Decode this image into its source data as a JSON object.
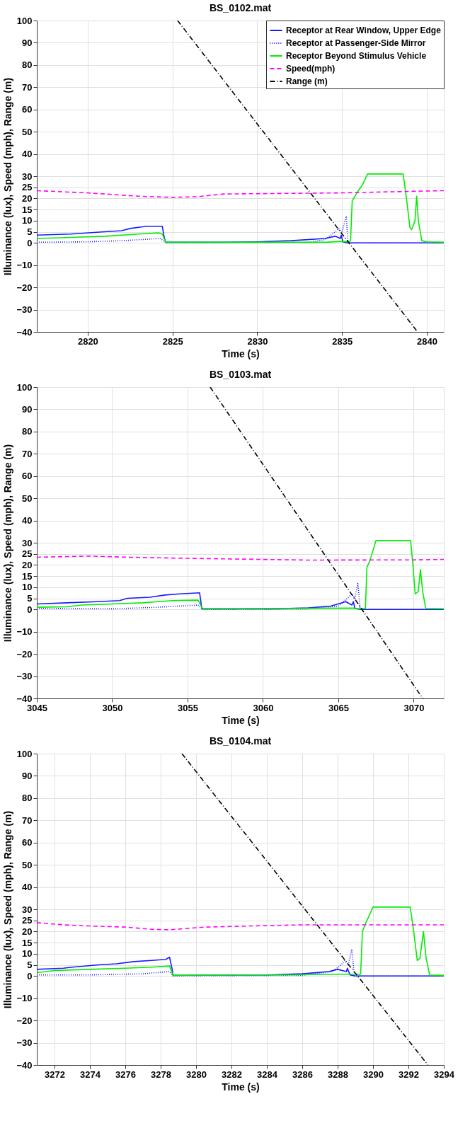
{
  "chart_data": [
    {
      "type": "line",
      "title": "BS_0102.mat",
      "xlabel": "Time (s)",
      "ylabel": "Illuminance (lux),  Speed (mph),  Range (m)",
      "xlim": [
        2817,
        2841
      ],
      "xticks": [
        2820,
        2825,
        2830,
        2835,
        2840
      ],
      "ylim": [
        -40,
        100
      ],
      "yticks": [
        -40,
        -30,
        -20,
        -10,
        0,
        5,
        10,
        15,
        20,
        25,
        30,
        40,
        50,
        60,
        70,
        80,
        90,
        100
      ],
      "grid": true,
      "legend": "top right",
      "series": [
        {
          "name": "Receptor at Rear Window, Upper Edge",
          "color": "#1a1aff",
          "line_style": "solid",
          "x": [
            2817,
            2819,
            2821,
            2822,
            2822.5,
            2823,
            2823.5,
            2824.4,
            2824.5,
            2824.6,
            2828,
            2830,
            2832,
            2834,
            2834.6,
            2834.9,
            2834.95,
            2835.05,
            2835.3,
            2841
          ],
          "values": [
            3.5,
            4,
            5,
            5.5,
            6.5,
            7,
            7.5,
            7.5,
            3,
            0.3,
            0.3,
            0.5,
            1,
            2,
            3,
            2,
            3.5,
            0.5,
            0,
            0
          ]
        },
        {
          "name": "Receptor at Passenger-Side Mirror",
          "color": "#1a1aff",
          "line_style": "dotted",
          "x": [
            2817,
            2820,
            2822,
            2824.3,
            2824.6,
            2833,
            2834,
            2834.6,
            2834.8,
            2835,
            2835.25,
            2835.35,
            2841
          ],
          "values": [
            0.3,
            0.5,
            1,
            2,
            0,
            0.2,
            1.5,
            5,
            6.5,
            5,
            12,
            0,
            0
          ]
        },
        {
          "name": "Receptor Beyond Stimulus Vehicle",
          "color": "#00ee00",
          "line_style": "solid",
          "x": [
            2817,
            2819,
            2821,
            2823,
            2824.2,
            2824.4,
            2824.6,
            2834,
            2835,
            2835.4,
            2835.5,
            2835.6,
            2836,
            2836.2,
            2836.5,
            2838.6,
            2838.8,
            2839,
            2839.1,
            2839.3,
            2839.4,
            2839.5,
            2839.7,
            2840,
            2841
          ],
          "values": [
            2,
            2.5,
            3,
            4,
            4.5,
            4,
            0.3,
            0.3,
            0.7,
            0.5,
            1,
            19,
            24,
            26,
            31,
            31,
            20,
            7,
            6,
            10,
            21,
            10,
            1,
            0.5,
            0.3
          ]
        },
        {
          "name": "Speed(mph)",
          "color": "#ff00ff",
          "line_style": "dashed",
          "x": [
            2817,
            2820,
            2823,
            2825,
            2826.5,
            2828,
            2832,
            2835,
            2838,
            2841
          ],
          "values": [
            23.5,
            22.5,
            21,
            20.5,
            20.8,
            22,
            22.3,
            22.5,
            23,
            23.5
          ]
        },
        {
          "name": "Range (m)",
          "color": "#000000",
          "line_style": "dashdot",
          "x": [
            2825.3,
            2839.45
          ],
          "values": [
            100,
            -40
          ]
        }
      ]
    },
    {
      "type": "line",
      "title": "BS_0103.mat",
      "xlabel": "Time (s)",
      "ylabel": "Illuminance (lux),  Speed (mph),  Range (m)",
      "xlim": [
        3045,
        3072
      ],
      "xticks": [
        3045,
        3050,
        3055,
        3060,
        3065,
        3070
      ],
      "ylim": [
        -40,
        100
      ],
      "yticks": [
        -40,
        -30,
        -20,
        -10,
        0,
        5,
        10,
        15,
        20,
        25,
        30,
        40,
        50,
        60,
        70,
        80,
        90,
        100
      ],
      "grid": true,
      "legend": "top right",
      "series": [
        {
          "name": "Receptor at Rear Window, Upper Edge",
          "color": "#1a1aff",
          "line_style": "solid",
          "x": [
            3045,
            3047,
            3049,
            3050.5,
            3051,
            3052.5,
            3053.5,
            3054.5,
            3055.8,
            3055.95,
            3061,
            3063,
            3064.5,
            3065.5,
            3065.9,
            3066.0,
            3066.1,
            3066.5,
            3072
          ],
          "values": [
            2.5,
            3,
            3.5,
            4,
            5,
            5.5,
            6.5,
            7,
            7.5,
            0.3,
            0.3,
            0.7,
            1.5,
            3.5,
            2,
            3.5,
            0.5,
            0,
            0
          ]
        },
        {
          "name": "Receptor at Passenger-Side Mirror",
          "color": "#1a1aff",
          "line_style": "dotted",
          "x": [
            3045,
            3050,
            3053,
            3055.7,
            3056,
            3063,
            3065,
            3065.6,
            3065.9,
            3066.1,
            3066.3,
            3066.45,
            3072
          ],
          "values": [
            0.5,
            0.3,
            1,
            2,
            0,
            0.2,
            1.5,
            5,
            7,
            5,
            12,
            0,
            0
          ]
        },
        {
          "name": "Receptor Beyond Stimulus Vehicle",
          "color": "#00ee00",
          "line_style": "solid",
          "x": [
            3045,
            3047,
            3048,
            3050,
            3052,
            3053,
            3054,
            3055.7,
            3056,
            3066,
            3066.5,
            3066.8,
            3066.9,
            3067.1,
            3067.5,
            3069.8,
            3069.95,
            3070.1,
            3070.3,
            3070.45,
            3070.6,
            3070.8,
            3072
          ],
          "values": [
            1,
            1.2,
            2,
            2.5,
            3,
            3.5,
            4,
            4.2,
            0.3,
            0.6,
            0.3,
            0.5,
            19,
            22,
            31,
            31,
            20,
            7,
            8,
            18,
            8,
            0.5,
            0.3
          ]
        },
        {
          "name": "Speed(mph)",
          "color": "#ff00ff",
          "line_style": "dashed",
          "x": [
            3045,
            3048.5,
            3051,
            3055,
            3060,
            3063,
            3070,
            3072
          ],
          "values": [
            23.5,
            24,
            23.5,
            23,
            22.5,
            22.2,
            22.3,
            22.5
          ]
        },
        {
          "name": "Range (m)",
          "color": "#000000",
          "line_style": "dashdot",
          "x": [
            3056.5,
            3070.6
          ],
          "values": [
            100,
            -40
          ]
        }
      ]
    },
    {
      "type": "line",
      "title": "BS_0104.mat",
      "xlabel": "Time (s)",
      "ylabel": "Illuminance (lux),  Speed (mph),  Range (m)",
      "xlim": [
        3271,
        3294
      ],
      "xticks": [
        3272,
        3274,
        3276,
        3278,
        3280,
        3282,
        3284,
        3286,
        3288,
        3290,
        3292,
        3294
      ],
      "ylim": [
        -40,
        100
      ],
      "yticks": [
        -40,
        -30,
        -20,
        -10,
        0,
        5,
        10,
        15,
        20,
        25,
        30,
        40,
        50,
        60,
        70,
        80,
        90,
        100
      ],
      "grid": true,
      "legend": "top right",
      "series": [
        {
          "name": "Receptor at Rear Window, Upper Edge",
          "color": "#1a1aff",
          "line_style": "solid",
          "x": [
            3271,
            3272.5,
            3273,
            3274.5,
            3275.5,
            3276.5,
            3277.5,
            3278.3,
            3278.5,
            3278.65,
            3278.7,
            3284,
            3286,
            3287.5,
            3288,
            3288.5,
            3288.55,
            3288.7,
            3289,
            3294
          ],
          "values": [
            3,
            3.5,
            4,
            5,
            5.5,
            6.5,
            7,
            7.5,
            8.5,
            3,
            0.3,
            0.5,
            1,
            2,
            3,
            2,
            3.5,
            0.5,
            0,
            0
          ]
        },
        {
          "name": "Receptor at Passenger-Side Mirror",
          "color": "#1a1aff",
          "line_style": "dotted",
          "x": [
            3271,
            3274,
            3277,
            3278.5,
            3278.7,
            3286,
            3287.7,
            3288.2,
            3288.4,
            3288.6,
            3288.8,
            3288.95,
            3294
          ],
          "values": [
            0.5,
            0.5,
            1,
            2,
            0,
            0.3,
            2,
            5,
            7,
            5,
            12,
            0,
            0
          ]
        },
        {
          "name": "Receptor Beyond Stimulus Vehicle",
          "color": "#00ee00",
          "line_style": "solid",
          "x": [
            3271,
            3272,
            3274,
            3276,
            3277.5,
            3278.5,
            3278.7,
            3285,
            3288,
            3289.3,
            3289.4,
            3289.6,
            3290,
            3292.1,
            3292.3,
            3292.5,
            3292.65,
            3292.85,
            3293,
            3293.2,
            3294
          ],
          "values": [
            1.5,
            2.5,
            3,
            3.5,
            4,
            4.5,
            0.3,
            0.5,
            0.8,
            0.8,
            20,
            24,
            31,
            31,
            20,
            7,
            8,
            20,
            8,
            0.5,
            0.3
          ]
        },
        {
          "name": "Speed(mph)",
          "color": "#ff00ff",
          "line_style": "dashed",
          "x": [
            3271,
            3272.5,
            3274,
            3276,
            3277.5,
            3278.5,
            3280.5,
            3283,
            3286,
            3294
          ],
          "values": [
            24,
            23,
            22.5,
            22,
            21,
            20.8,
            22,
            22.5,
            23,
            23
          ]
        },
        {
          "name": "Range (m)",
          "color": "#000000",
          "line_style": "dashdot",
          "x": [
            3279.2,
            3293.1
          ],
          "values": [
            100,
            -40
          ]
        }
      ]
    }
  ]
}
